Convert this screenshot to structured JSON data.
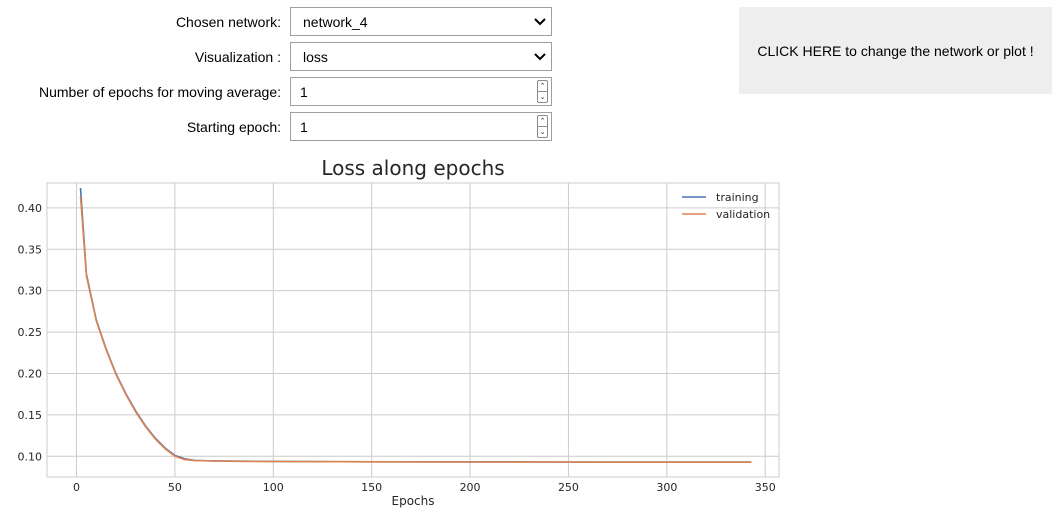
{
  "form": {
    "network_label": "Chosen network:",
    "network_value": "network_4",
    "visualization_label": "Visualization :",
    "visualization_value": "loss",
    "moving_avg_label": "Number of epochs for moving average:",
    "moving_avg_value": "1",
    "start_epoch_label": "Starting epoch:",
    "start_epoch_value": "1"
  },
  "cta": {
    "label": "CLICK HERE to change the network or plot !"
  },
  "colors": {
    "training": "#4c72b0",
    "validation": "#dd8452",
    "grid": "#cccccc",
    "cta_bg": "#eeeeee"
  },
  "chart_data": {
    "type": "line",
    "title": "Loss along epochs",
    "xlabel": "Epochs",
    "ylabel": "",
    "xlim": [
      -15,
      357
    ],
    "ylim": [
      0.075,
      0.43
    ],
    "xticks": [
      0,
      50,
      100,
      150,
      200,
      250,
      300,
      350
    ],
    "yticks": [
      0.1,
      0.15,
      0.2,
      0.25,
      0.3,
      0.35,
      0.4
    ],
    "grid": true,
    "legend_position": "top-right",
    "series": [
      {
        "name": "training",
        "x": [
          2,
          5,
          10,
          15,
          20,
          25,
          30,
          35,
          40,
          45,
          50,
          55,
          60,
          70,
          80,
          100,
          150,
          200,
          250,
          300,
          343
        ],
        "y": [
          0.424,
          0.32,
          0.265,
          0.23,
          0.2,
          0.176,
          0.155,
          0.137,
          0.122,
          0.11,
          0.101,
          0.097,
          0.095,
          0.0945,
          0.0942,
          0.0938,
          0.0934,
          0.0932,
          0.0931,
          0.093,
          0.093
        ]
      },
      {
        "name": "validation",
        "x": [
          2,
          5,
          10,
          15,
          20,
          25,
          30,
          35,
          40,
          45,
          50,
          55,
          60,
          70,
          80,
          100,
          150,
          200,
          250,
          300,
          343
        ],
        "y": [
          0.414,
          0.318,
          0.264,
          0.229,
          0.199,
          0.175,
          0.154,
          0.136,
          0.121,
          0.109,
          0.1,
          0.096,
          0.0948,
          0.0943,
          0.094,
          0.0937,
          0.0933,
          0.0931,
          0.093,
          0.0929,
          0.0929
        ]
      }
    ]
  }
}
